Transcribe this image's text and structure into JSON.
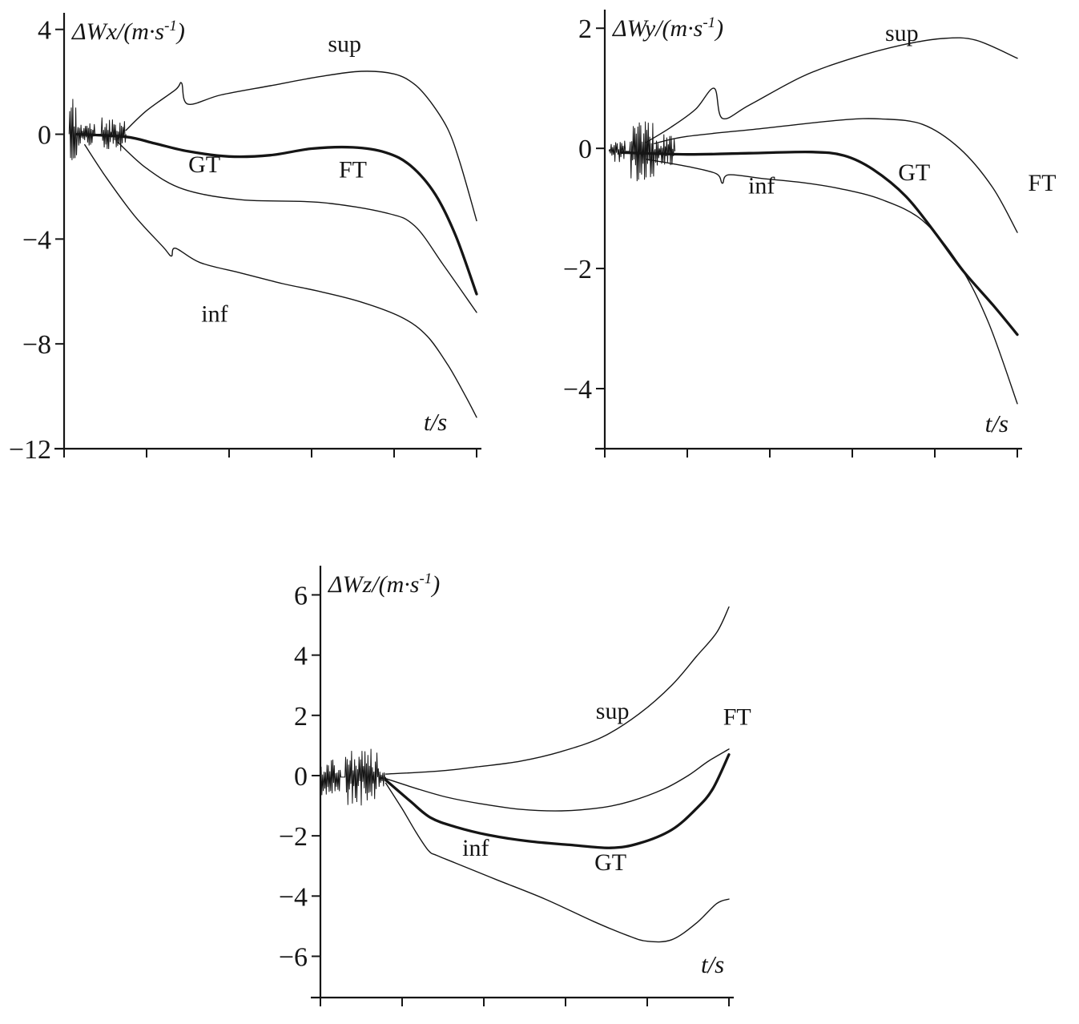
{
  "figure": {
    "background": "#ffffff",
    "ink": "#151515",
    "description": "Three scanned line plots of velocity error components vs time with GT/FT estimates and sup/inf bounds"
  },
  "chart_data": [
    {
      "id": "delta-wx",
      "type": "line",
      "title": "",
      "ylabel_parts": [
        "ΔWx/(m·s",
        "-1",
        ")"
      ],
      "xlabel": "t/s",
      "xlabel_pos": {
        "t": 0.9,
        "v": -11.3
      },
      "xlim": [
        0,
        1
      ],
      "ylim": [
        -12,
        4.45
      ],
      "yticks": [
        4,
        0,
        -4,
        -8,
        -12
      ],
      "xticks": [
        0,
        0.2,
        0.4,
        0.6,
        0.8,
        1.0
      ],
      "xtick_labels": [],
      "grid": false,
      "noise": {
        "center": 0,
        "seed": 11,
        "bursts": [
          {
            "t0": 0.012,
            "t1": 0.032,
            "amp": 1.55
          },
          {
            "t0": 0.032,
            "t1": 0.075,
            "amp": 0.5
          },
          {
            "t0": 0.09,
            "t1": 0.15,
            "amp": 0.65
          }
        ]
      },
      "series": [
        {
          "name": "sup",
          "role": "upper-bound",
          "thick": false,
          "points": [
            [
              0.15,
              0.15
            ],
            [
              0.2,
              0.9
            ],
            [
              0.27,
              1.7
            ],
            [
              0.285,
              1.95
            ],
            [
              0.3,
              1.15
            ],
            [
              0.38,
              1.5
            ],
            [
              0.5,
              1.85
            ],
            [
              0.62,
              2.2
            ],
            [
              0.72,
              2.4
            ],
            [
              0.8,
              2.3
            ],
            [
              0.85,
              1.9
            ],
            [
              0.89,
              1.2
            ],
            [
              0.93,
              0.2
            ],
            [
              0.96,
              -1.1
            ],
            [
              1.0,
              -3.3
            ]
          ]
        },
        {
          "name": "GT",
          "role": "estimate-GT",
          "thick": true,
          "points": [
            [
              0.03,
              0.0
            ],
            [
              0.15,
              -0.1
            ],
            [
              0.22,
              -0.35
            ],
            [
              0.3,
              -0.65
            ],
            [
              0.4,
              -0.85
            ],
            [
              0.5,
              -0.8
            ],
            [
              0.6,
              -0.55
            ],
            [
              0.7,
              -0.5
            ],
            [
              0.78,
              -0.7
            ],
            [
              0.84,
              -1.2
            ],
            [
              0.9,
              -2.3
            ],
            [
              0.95,
              -3.9
            ],
            [
              1.0,
              -6.1
            ]
          ]
        },
        {
          "name": "FT",
          "role": "estimate-FT",
          "thick": false,
          "points": [
            [
              0.13,
              -0.3
            ],
            [
              0.2,
              -1.3
            ],
            [
              0.29,
              -2.1
            ],
            [
              0.43,
              -2.5
            ],
            [
              0.62,
              -2.6
            ],
            [
              0.78,
              -3.0
            ],
            [
              0.85,
              -3.5
            ],
            [
              0.92,
              -5.0
            ],
            [
              1.0,
              -6.8
            ]
          ]
        },
        {
          "name": "inf",
          "role": "lower-bound",
          "thick": false,
          "points": [
            [
              0.05,
              -0.4
            ],
            [
              0.1,
              -1.6
            ],
            [
              0.17,
              -3.1
            ],
            [
              0.24,
              -4.3
            ],
            [
              0.26,
              -4.65
            ],
            [
              0.27,
              -4.35
            ],
            [
              0.33,
              -4.9
            ],
            [
              0.43,
              -5.3
            ],
            [
              0.53,
              -5.7
            ],
            [
              0.62,
              -6.0
            ],
            [
              0.72,
              -6.4
            ],
            [
              0.82,
              -7.0
            ],
            [
              0.88,
              -7.7
            ],
            [
              0.93,
              -8.8
            ],
            [
              0.97,
              -9.9
            ],
            [
              1.0,
              -10.8
            ]
          ]
        }
      ],
      "labels": [
        {
          "text": "sup",
          "t": 0.68,
          "v": 3.45
        },
        {
          "text": "GT",
          "t": 0.34,
          "v": -1.15
        },
        {
          "text": "FT",
          "t": 0.7,
          "v": -1.35
        },
        {
          "text": "inf",
          "t": 0.365,
          "v": -6.85
        }
      ]
    },
    {
      "id": "delta-wy",
      "type": "line",
      "title": "",
      "ylabel_parts": [
        "ΔWy/(m·s",
        "-1",
        ")"
      ],
      "xlabel": "t/s",
      "xlabel_pos": {
        "t": 0.95,
        "v": -4.72
      },
      "xlim": [
        0,
        1
      ],
      "ylim": [
        -5.0,
        2.23
      ],
      "yticks": [
        2,
        0,
        -2,
        -4
      ],
      "xticks": [
        0,
        0.2,
        0.4,
        0.6,
        0.8,
        1.0
      ],
      "xtick_labels": [],
      "grid": false,
      "noise": {
        "center": -0.05,
        "seed": 23,
        "bursts": [
          {
            "t0": 0.01,
            "t1": 0.05,
            "amp": 0.18
          },
          {
            "t0": 0.06,
            "t1": 0.12,
            "amp": 0.52
          },
          {
            "t0": 0.12,
            "t1": 0.17,
            "amp": 0.3
          }
        ]
      },
      "series": [
        {
          "name": "sup",
          "role": "upper-bound",
          "thick": false,
          "points": [
            [
              0.1,
              0.1
            ],
            [
              0.16,
              0.35
            ],
            [
              0.22,
              0.65
            ],
            [
              0.265,
              1.0
            ],
            [
              0.285,
              0.5
            ],
            [
              0.35,
              0.72
            ],
            [
              0.48,
              1.2
            ],
            [
              0.6,
              1.5
            ],
            [
              0.72,
              1.72
            ],
            [
              0.82,
              1.83
            ],
            [
              0.9,
              1.8
            ],
            [
              1.0,
              1.5
            ]
          ]
        },
        {
          "name": "FT",
          "role": "estimate-FT",
          "thick": false,
          "points": [
            [
              0.12,
              0.08
            ],
            [
              0.2,
              0.2
            ],
            [
              0.38,
              0.33
            ],
            [
              0.57,
              0.47
            ],
            [
              0.67,
              0.49
            ],
            [
              0.77,
              0.4
            ],
            [
              0.86,
              0.0
            ],
            [
              0.94,
              -0.65
            ],
            [
              1.0,
              -1.4
            ]
          ]
        },
        {
          "name": "GT",
          "role": "estimate-GT",
          "thick": true,
          "points": [
            [
              0.04,
              -0.07
            ],
            [
              0.2,
              -0.1
            ],
            [
              0.35,
              -0.08
            ],
            [
              0.5,
              -0.06
            ],
            [
              0.58,
              -0.12
            ],
            [
              0.65,
              -0.35
            ],
            [
              0.73,
              -0.8
            ],
            [
              0.8,
              -1.4
            ],
            [
              0.87,
              -2.05
            ],
            [
              0.94,
              -2.6
            ],
            [
              1.0,
              -3.1
            ]
          ]
        },
        {
          "name": "inf",
          "role": "lower-bound",
          "thick": false,
          "points": [
            [
              0.1,
              -0.18
            ],
            [
              0.2,
              -0.3
            ],
            [
              0.27,
              -0.42
            ],
            [
              0.285,
              -0.58
            ],
            [
              0.3,
              -0.44
            ],
            [
              0.38,
              -0.5
            ],
            [
              0.48,
              -0.57
            ],
            [
              0.57,
              -0.67
            ],
            [
              0.67,
              -0.85
            ],
            [
              0.77,
              -1.2
            ],
            [
              0.86,
              -1.95
            ],
            [
              0.93,
              -2.9
            ],
            [
              1.0,
              -4.25
            ]
          ]
        }
      ],
      "labels": [
        {
          "text": "sup",
          "t": 0.72,
          "v": 1.92
        },
        {
          "text": "inf",
          "t": 0.38,
          "v": -0.62
        },
        {
          "text": "GT",
          "t": 0.75,
          "v": -0.4
        },
        {
          "text": "FT",
          "t": 1.06,
          "v": -0.57
        }
      ]
    },
    {
      "id": "delta-wz",
      "type": "line",
      "title": "",
      "ylabel_parts": [
        "ΔWz/(m·s",
        "-1",
        ")"
      ],
      "xlabel": "t/s",
      "xlabel_pos": {
        "t": 0.96,
        "v": -6.55
      },
      "xlim": [
        0,
        1
      ],
      "ylim": [
        -7.37,
        6.81
      ],
      "yticks": [
        6,
        4,
        2,
        0,
        -2,
        -4,
        -6
      ],
      "xticks": [
        0,
        0.2,
        0.4,
        0.6,
        0.8,
        1.0
      ],
      "xtick_labels": [],
      "grid": false,
      "noise": {
        "center": -0.05,
        "seed": 37,
        "bursts": [
          {
            "t0": 0.0,
            "t1": 0.05,
            "amp": 0.6
          },
          {
            "t0": 0.06,
            "t1": 0.14,
            "amp": 0.95
          },
          {
            "t0": 0.14,
            "t1": 0.16,
            "amp": 0.35
          }
        ]
      },
      "series": [
        {
          "name": "sup",
          "role": "upper-bound",
          "thick": false,
          "points": [
            [
              0.16,
              0.05
            ],
            [
              0.29,
              0.15
            ],
            [
              0.39,
              0.3
            ],
            [
              0.49,
              0.48
            ],
            [
              0.59,
              0.8
            ],
            [
              0.69,
              1.28
            ],
            [
              0.78,
              2.05
            ],
            [
              0.86,
              3.0
            ],
            [
              0.92,
              3.95
            ],
            [
              0.97,
              4.75
            ],
            [
              1.0,
              5.6
            ]
          ]
        },
        {
          "name": "FT",
          "role": "estimate-FT",
          "thick": false,
          "points": [
            [
              0.16,
              -0.1
            ],
            [
              0.24,
              -0.45
            ],
            [
              0.31,
              -0.72
            ],
            [
              0.39,
              -0.93
            ],
            [
              0.49,
              -1.12
            ],
            [
              0.59,
              -1.17
            ],
            [
              0.69,
              -1.06
            ],
            [
              0.76,
              -0.85
            ],
            [
              0.84,
              -0.45
            ],
            [
              0.9,
              0.0
            ],
            [
              0.95,
              0.48
            ],
            [
              1.0,
              0.88
            ]
          ]
        },
        {
          "name": "GT",
          "role": "estimate-GT",
          "thick": true,
          "points": [
            [
              0.16,
              -0.15
            ],
            [
              0.22,
              -0.85
            ],
            [
              0.27,
              -1.4
            ],
            [
              0.33,
              -1.7
            ],
            [
              0.41,
              -1.97
            ],
            [
              0.51,
              -2.18
            ],
            [
              0.61,
              -2.3
            ],
            [
              0.71,
              -2.4
            ],
            [
              0.78,
              -2.25
            ],
            [
              0.86,
              -1.8
            ],
            [
              0.92,
              -1.1
            ],
            [
              0.96,
              -0.45
            ],
            [
              1.0,
              0.7
            ]
          ]
        },
        {
          "name": "inf",
          "role": "lower-bound",
          "thick": false,
          "points": [
            [
              0.16,
              -0.25
            ],
            [
              0.2,
              -1.1
            ],
            [
              0.235,
              -1.9
            ],
            [
              0.265,
              -2.5
            ],
            [
              0.285,
              -2.65
            ],
            [
              0.33,
              -2.9
            ],
            [
              0.43,
              -3.45
            ],
            [
              0.55,
              -4.1
            ],
            [
              0.67,
              -4.85
            ],
            [
              0.75,
              -5.3
            ],
            [
              0.8,
              -5.5
            ],
            [
              0.86,
              -5.45
            ],
            [
              0.92,
              -4.9
            ],
            [
              0.97,
              -4.25
            ],
            [
              1.0,
              -4.1
            ]
          ]
        }
      ],
      "labels": [
        {
          "text": "sup",
          "t": 0.715,
          "v": 2.15
        },
        {
          "text": "FT",
          "t": 1.02,
          "v": 1.95
        },
        {
          "text": "inf",
          "t": 0.38,
          "v": -2.4
        },
        {
          "text": "GT",
          "t": 0.71,
          "v": -2.87
        }
      ]
    }
  ]
}
